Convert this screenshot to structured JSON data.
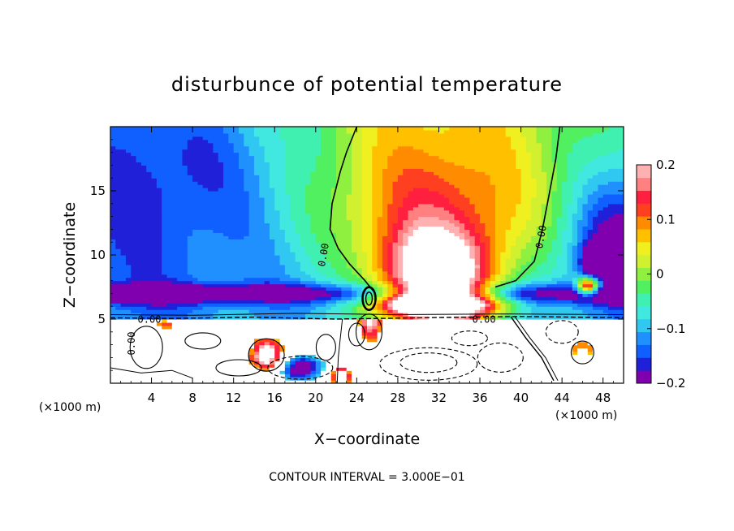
{
  "chart_data": {
    "type": "heatmap",
    "title": "disturbunce of potential temperature",
    "xlabel": "X−coordinate",
    "ylabel": "Z−coordinate",
    "x_unit_left": "(×1000 m)",
    "x_unit_right": "(×1000 m)",
    "xlim": [
      0,
      50
    ],
    "ylim": [
      0,
      20
    ],
    "x_ticks": [
      4,
      8,
      12,
      16,
      20,
      24,
      28,
      32,
      36,
      40,
      44,
      48
    ],
    "y_ticks": [
      5,
      10,
      15
    ],
    "colorbar": {
      "range": [
        -0.2,
        0.2
      ],
      "tick_values": [
        0.2,
        0.1,
        0,
        -0.1,
        -0.2
      ],
      "tick_labels": [
        "0.2",
        "0.1",
        "0",
        "−0.1",
        "−0.2"
      ],
      "colors": [
        "#8000b0",
        "#2020d8",
        "#1060ff",
        "#2090ff",
        "#30c8f0",
        "#40e8e0",
        "#40f0b0",
        "#50f060",
        "#90f040",
        "#d0f030",
        "#f0f020",
        "#ffc000",
        "#ff8c00",
        "#ff4020",
        "#ff2040",
        "#ff8080",
        "#ffb0b0"
      ]
    },
    "contour_labels": [
      "0.00",
      "0.00",
      "0.00",
      "0.00",
      "0.00"
    ],
    "footer": "CONTOUR INTERVAL = 3.000E−01",
    "features": {
      "warm_core": {
        "x": 31.8,
        "z": 9.5,
        "value": 0.2
      },
      "warm_plume_top": {
        "x": 32,
        "z": 19
      },
      "cold_band": {
        "z": 7.0,
        "value": -0.15
      },
      "cold_anomaly_right": {
        "x": 47,
        "z": 9.0,
        "value": -0.2
      },
      "neutral_contour_left_x_at_top": 24,
      "neutral_contour_right_x_at_top": 43.5
    }
  }
}
